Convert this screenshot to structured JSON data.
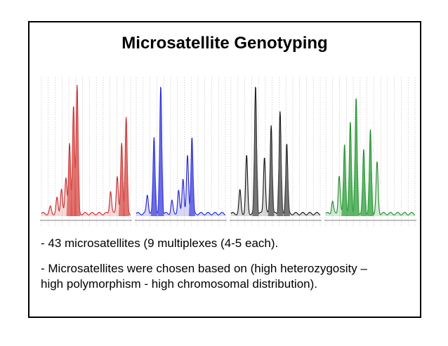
{
  "slide": {
    "title": "Microsatellite Genotyping",
    "bullets": [
      "- 43 microsatellites (9 multiplexes (4-5 each).",
      "- Microsatellites were chosen based on (high heterozygosity –",
      "high polymorphism  - high chromosomal distribution)."
    ]
  },
  "chart_data": {
    "type": "line",
    "title": "",
    "description_panels": [
      {
        "panel": "red",
        "color": "#c8282b",
        "fill": "#d9534f"
      },
      {
        "panel": "blue",
        "color": "#2323cf",
        "fill": "#4a4ae0"
      },
      {
        "panel": "black",
        "color": "#111111",
        "fill": "#555555"
      },
      {
        "panel": "green",
        "color": "#1f8a2a",
        "fill": "#3aa545"
      }
    ],
    "series": [
      {
        "name": "red",
        "peaks": [
          [
            0.2,
            0.05
          ],
          [
            0.35,
            0.12
          ],
          [
            0.45,
            0.2
          ],
          [
            0.55,
            0.28
          ],
          [
            0.63,
            0.55
          ],
          [
            0.72,
            0.85
          ],
          [
            0.8,
            1.0
          ],
          [
            1.55,
            0.18
          ],
          [
            1.7,
            0.3
          ],
          [
            1.8,
            0.55
          ],
          [
            1.9,
            0.75
          ]
        ]
      },
      {
        "name": "blue",
        "peaks": [
          [
            0.25,
            0.15
          ],
          [
            0.4,
            0.6
          ],
          [
            0.55,
            1.0
          ],
          [
            0.8,
            0.1
          ],
          [
            0.95,
            0.18
          ],
          [
            1.05,
            0.28
          ],
          [
            1.15,
            0.45
          ],
          [
            1.25,
            0.6
          ]
        ]
      },
      {
        "name": "black",
        "peaks": [
          [
            0.2,
            0.18
          ],
          [
            0.35,
            0.45
          ],
          [
            0.55,
            1.0
          ],
          [
            0.75,
            0.45
          ],
          [
            0.9,
            0.7
          ],
          [
            1.1,
            0.8
          ],
          [
            1.25,
            0.55
          ]
        ]
      },
      {
        "name": "green",
        "peaks": [
          [
            0.15,
            0.1
          ],
          [
            0.3,
            0.3
          ],
          [
            0.42,
            0.55
          ],
          [
            0.55,
            0.72
          ],
          [
            0.68,
            0.9
          ],
          [
            0.85,
            0.5
          ],
          [
            1.0,
            0.65
          ],
          [
            1.15,
            0.4
          ]
        ]
      }
    ]
  }
}
